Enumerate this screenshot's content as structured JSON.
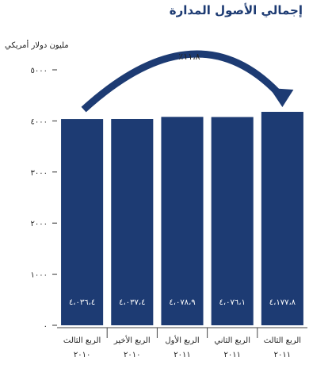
{
  "title": "إجمالي الأصول المدارة",
  "chart_data": {
    "type": "bar",
    "ylabel": "مليون دولار أمريكي",
    "ylim": [
      0,
      5000
    ],
    "yticks": [
      0,
      1000,
      2000,
      3000,
      4000,
      5000
    ],
    "ytick_labels": [
      "٠",
      "١٠٠٠",
      "٢٠٠٠",
      "٣٠٠٠",
      "٤٠٠٠",
      "٥٠٠٠"
    ],
    "categories": [
      {
        "line1": "الربع الثالث",
        "line2": "٢٠١٠"
      },
      {
        "line1": "الربع الأخير",
        "line2": "٢٠١٠"
      },
      {
        "line1": "الربع الأول",
        "line2": "٢٠١١"
      },
      {
        "line1": "الربع الثاني",
        "line2": "٢٠١١"
      },
      {
        "line1": "الربع الثالث",
        "line2": "٢٠١١"
      }
    ],
    "values": [
      4036.4,
      4037.4,
      4078.9,
      4076.1,
      4177.8
    ],
    "value_labels": [
      "٤،٠٣٦،٤",
      "٤،٠٣٧،٤",
      "٤،٠٧٨،٩",
      "٤،٠٧٦،١",
      "٤،١٧٧،٨"
    ],
    "annotation": "٪١١،٨",
    "bar_color": "#1d3b73",
    "grid": false
  }
}
